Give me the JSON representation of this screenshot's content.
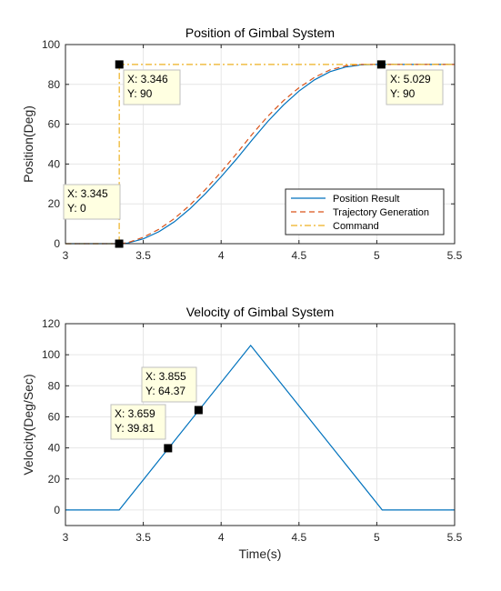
{
  "chart_data": [
    {
      "type": "line",
      "title": "Position of Gimbal System",
      "xlabel": "",
      "ylabel": "Position(Deg)",
      "xlim": [
        3,
        5.5
      ],
      "ylim": [
        0,
        100
      ],
      "xticks": [
        "3",
        "3.5",
        "4",
        "4.5",
        "5",
        "5.5"
      ],
      "yticks": [
        "0",
        "20",
        "40",
        "60",
        "80",
        "100"
      ],
      "grid": true,
      "legend_position": "bottom-right",
      "series": [
        {
          "name": "Position Result",
          "color": "#0072bd",
          "style": "solid",
          "x": [
            3.0,
            3.345,
            3.4,
            3.5,
            3.6,
            3.7,
            3.8,
            3.9,
            4.0,
            4.1,
            4.2,
            4.3,
            4.4,
            4.5,
            4.6,
            4.7,
            4.8,
            4.9,
            5.0,
            5.029,
            5.1,
            5.5
          ],
          "y": [
            0,
            0,
            0.3,
            2.4,
            6.0,
            11.0,
            17.6,
            25.2,
            33.6,
            42.6,
            52.2,
            61.4,
            69.6,
            76.6,
            82.3,
            86.4,
            88.7,
            89.8,
            90,
            90,
            90,
            90
          ]
        },
        {
          "name": "Trajectory Generation",
          "color": "#d95319",
          "style": "dashed",
          "x": [
            3.0,
            3.345,
            3.4,
            3.5,
            3.6,
            3.7,
            3.8,
            3.9,
            4.0,
            4.1,
            4.2,
            4.3,
            4.4,
            4.5,
            4.6,
            4.7,
            4.8,
            4.9,
            5.0,
            5.029,
            5.1,
            5.5
          ],
          "y": [
            0,
            0,
            0.5,
            3.2,
            7.2,
            12.6,
            19.4,
            27.3,
            36.0,
            45.3,
            55.0,
            64.0,
            71.8,
            78.3,
            83.5,
            87.3,
            89.3,
            90,
            90,
            90,
            90,
            90
          ]
        },
        {
          "name": "Command",
          "color": "#edb120",
          "style": "dashdot",
          "x": [
            3.0,
            3.345,
            3.346,
            5.5
          ],
          "y": [
            0,
            0,
            90,
            90
          ]
        }
      ],
      "annotations": [
        {
          "x": 3.345,
          "y": 0,
          "lines": [
            "X: 3.345",
            "Y: 0"
          ]
        },
        {
          "x": 3.346,
          "y": 90,
          "lines": [
            "X: 3.346",
            "Y: 90"
          ]
        },
        {
          "x": 5.029,
          "y": 90,
          "lines": [
            "X: 5.029",
            "Y: 90"
          ]
        }
      ]
    },
    {
      "type": "line",
      "title": "Velocity of Gimbal System",
      "xlabel": "Time(s)",
      "ylabel": "Velocity(Deg/Sec)",
      "xlim": [
        3,
        5.5
      ],
      "ylim": [
        -10,
        120
      ],
      "xticks": [
        "3",
        "3.5",
        "4",
        "4.5",
        "5",
        "5.5"
      ],
      "yticks": [
        "0",
        "20",
        "40",
        "60",
        "80",
        "100",
        "120"
      ],
      "grid": true,
      "series": [
        {
          "name": "",
          "color": "#0072bd",
          "style": "solid",
          "x": [
            3.0,
            3.345,
            4.19,
            5.035,
            5.5
          ],
          "y": [
            0,
            0,
            106,
            0,
            0
          ]
        }
      ],
      "annotations": [
        {
          "x": 3.659,
          "y": 39.81,
          "lines": [
            "X: 3.659",
            "Y: 39.81"
          ]
        },
        {
          "x": 3.855,
          "y": 64.37,
          "lines": [
            "X: 3.855",
            "Y: 64.37"
          ]
        }
      ]
    }
  ]
}
